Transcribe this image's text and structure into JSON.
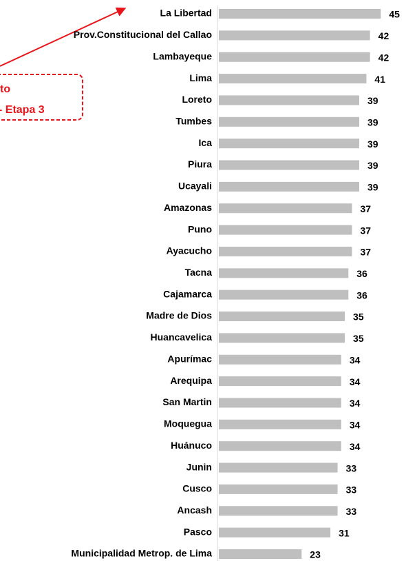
{
  "chart_data": {
    "type": "bar",
    "orientation": "horizontal",
    "categories": [
      "La Libertad",
      "Prov.Constitucional del Callao",
      "Lambayeque",
      "Lima",
      "Loreto",
      "Tumbes",
      "Ica",
      "Piura",
      "Ucayali",
      "Amazonas",
      "Puno",
      "Ayacucho",
      "Tacna",
      "Cajamarca",
      "Madre de Dios",
      "Huancavelica",
      "Apurímac",
      "Arequipa",
      "San Martin",
      "Moquegua",
      "Huánuco",
      "Junin",
      "Cusco",
      "Ancash",
      "Pasco",
      "Municipalidad Metrop. de Lima"
    ],
    "values": [
      45,
      42,
      42,
      41,
      39,
      39,
      39,
      39,
      39,
      37,
      37,
      37,
      36,
      36,
      35,
      35,
      34,
      34,
      34,
      34,
      34,
      33,
      33,
      33,
      31,
      23
    ],
    "color": "#bfbfbf",
    "annotation": {
      "lines": [
        "to",
        "- Etapa 3"
      ],
      "color": "#e8141a"
    }
  }
}
